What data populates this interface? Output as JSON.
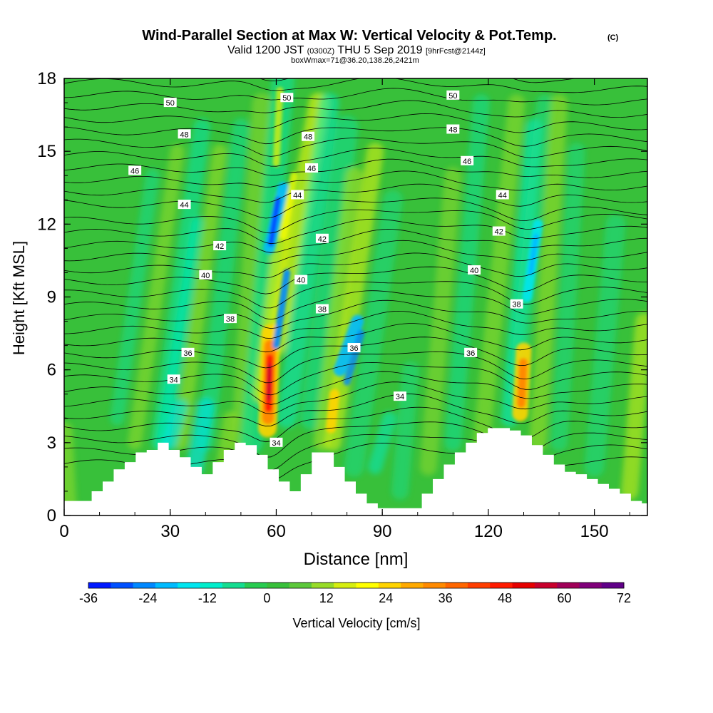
{
  "header": {
    "title": "Wind-Parallel Section at Max W: Vertical Velocity & Pot.Temp.",
    "title_mark": "(C)",
    "subtitle_prefix": "Valid 1200 JST",
    "subtitle_utc": "(0300Z)",
    "subtitle_date": "THU 5 Sep 2019",
    "subtitle_fcst": "[9hrFcst@2144z]",
    "subtitle2": "boxWmax=71@36.20,138.26,2421m"
  },
  "chart_data": {
    "type": "heatmap",
    "xlabel": "Distance [nm]",
    "ylabel": "Height [Kft MSL]",
    "xlim": [
      0,
      165
    ],
    "ylim": [
      0,
      18
    ],
    "xticks": [
      0,
      30,
      60,
      90,
      120,
      150
    ],
    "yticks": [
      0,
      3,
      6,
      9,
      12,
      15,
      18
    ],
    "colorbar": {
      "label": "Vertical Velocity [cm/s]",
      "ticks": [
        -36,
        -24,
        -12,
        0,
        12,
        24,
        36,
        48,
        60,
        72
      ],
      "colors": [
        "#0018ff",
        "#0050ff",
        "#0088ff",
        "#00bbff",
        "#00e6f0",
        "#00eecc",
        "#14dd90",
        "#28cc50",
        "#38c03a",
        "#5cc83a",
        "#98dc28",
        "#d6ee10",
        "#ffff00",
        "#ffd400",
        "#ffaa00",
        "#ff8a00",
        "#ff6600",
        "#ff3d00",
        "#ff1a00",
        "#e60000",
        "#c8002c",
        "#a00058",
        "#80007a",
        "#600088"
      ]
    },
    "terrain_kft": [
      [
        0,
        0.6
      ],
      [
        1,
        0.6
      ],
      [
        2,
        0.6
      ],
      [
        3,
        1.0
      ],
      [
        4,
        1.4
      ],
      [
        5,
        1.9
      ],
      [
        6,
        2.2
      ],
      [
        7,
        2.6
      ],
      [
        8,
        2.7
      ],
      [
        9,
        3.0
      ],
      [
        10,
        2.7
      ],
      [
        11,
        2.4
      ],
      [
        12,
        2.0
      ],
      [
        13,
        1.7
      ],
      [
        14,
        2.2
      ],
      [
        15,
        2.7
      ],
      [
        16,
        3.0
      ],
      [
        17,
        2.9
      ],
      [
        18,
        2.5
      ],
      [
        19,
        1.9
      ],
      [
        20,
        1.4
      ],
      [
        21,
        1.0
      ],
      [
        22,
        1.7
      ],
      [
        23,
        2.6
      ],
      [
        24,
        2.6
      ],
      [
        25,
        2.0
      ],
      [
        26,
        1.4
      ],
      [
        27,
        0.9
      ],
      [
        28,
        0.5
      ],
      [
        29,
        0.3
      ],
      [
        30,
        0.3
      ],
      [
        31,
        0.3
      ],
      [
        32,
        0.3
      ],
      [
        33,
        0.9
      ],
      [
        34,
        1.5
      ],
      [
        35,
        2.1
      ],
      [
        36,
        2.6
      ],
      [
        37,
        3.0
      ],
      [
        38,
        3.4
      ],
      [
        39,
        3.6
      ],
      [
        40,
        3.6
      ],
      [
        41,
        3.5
      ],
      [
        42,
        3.3
      ],
      [
        43,
        2.9
      ],
      [
        44,
        2.5
      ],
      [
        45,
        2.1
      ],
      [
        46,
        1.8
      ],
      [
        47,
        1.7
      ],
      [
        48,
        1.5
      ],
      [
        49,
        1.3
      ],
      [
        50,
        1.1
      ],
      [
        51,
        0.9
      ],
      [
        52,
        0.6
      ],
      [
        53,
        0.5
      ]
    ],
    "theta_labels": [
      {
        "text": "50",
        "x": 30,
        "y": 17.0
      },
      {
        "text": "48",
        "x": 34,
        "y": 15.7
      },
      {
        "text": "46",
        "x": 20,
        "y": 14.2
      },
      {
        "text": "44",
        "x": 34,
        "y": 12.8
      },
      {
        "text": "42",
        "x": 44,
        "y": 11.1
      },
      {
        "text": "40",
        "x": 40,
        "y": 9.9
      },
      {
        "text": "38",
        "x": 47,
        "y": 8.1
      },
      {
        "text": "36",
        "x": 35,
        "y": 6.7
      },
      {
        "text": "34",
        "x": 31,
        "y": 5.6
      },
      {
        "text": "50",
        "x": 63,
        "y": 17.2
      },
      {
        "text": "48",
        "x": 69,
        "y": 15.6
      },
      {
        "text": "46",
        "x": 70,
        "y": 14.3
      },
      {
        "text": "44",
        "x": 66,
        "y": 13.2
      },
      {
        "text": "42",
        "x": 73,
        "y": 11.4
      },
      {
        "text": "40",
        "x": 67,
        "y": 9.7
      },
      {
        "text": "38",
        "x": 73,
        "y": 8.5
      },
      {
        "text": "36",
        "x": 82,
        "y": 6.9
      },
      {
        "text": "34",
        "x": 95,
        "y": 4.9
      },
      {
        "text": "34",
        "x": 60,
        "y": 3.0
      },
      {
        "text": "50",
        "x": 110,
        "y": 17.3
      },
      {
        "text": "48",
        "x": 110,
        "y": 15.9
      },
      {
        "text": "46",
        "x": 114,
        "y": 14.6
      },
      {
        "text": "44",
        "x": 124,
        "y": 13.2
      },
      {
        "text": "42",
        "x": 123,
        "y": 11.7
      },
      {
        "text": "40",
        "x": 116,
        "y": 10.1
      },
      {
        "text": "38",
        "x": 128,
        "y": 8.7
      },
      {
        "text": "36",
        "x": 115,
        "y": 6.7
      }
    ],
    "updraft_cores": [
      {
        "x": 58,
        "y": 5.3,
        "peak_cm_s": 71
      },
      {
        "x": 130,
        "y": 5.2,
        "peak_cm_s": 40
      },
      {
        "x": 76,
        "y": 4.2,
        "peak_cm_s": 25
      }
    ]
  }
}
